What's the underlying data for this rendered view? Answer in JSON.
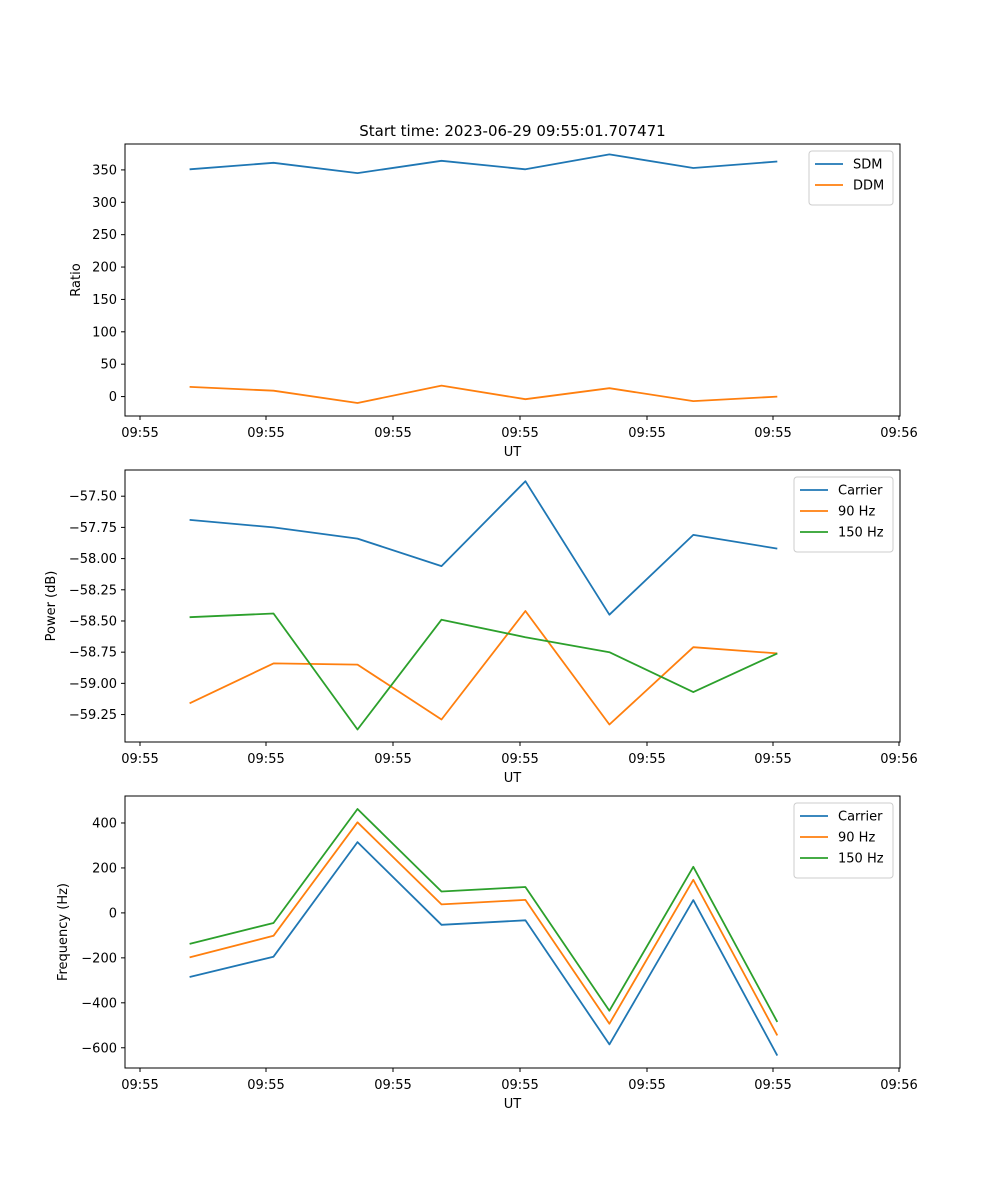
{
  "title": "Start time: 2023-06-29 09:55:01.707471",
  "chart_data": [
    {
      "type": "line",
      "title": "Start time: 2023-06-29 09:55:01.707471",
      "xlabel": "UT",
      "ylabel": "Ratio",
      "xlim": [
        0,
        6
      ],
      "ylim": [
        -30,
        390
      ],
      "x_ticks": [
        "09:55",
        "09:55",
        "09:55",
        "09:55",
        "09:55",
        "09:55",
        "09:56"
      ],
      "y_ticks": [
        0,
        50,
        100,
        150,
        200,
        250,
        300,
        350
      ],
      "x": [
        0.5,
        1.15,
        1.8,
        2.45,
        3.1,
        3.75,
        4.4,
        5.05
      ],
      "legend": "top-right",
      "grid": false,
      "series": [
        {
          "name": "SDM",
          "color": "#1f77b4",
          "values": [
            351,
            361,
            345,
            364,
            351,
            374,
            353,
            363
          ]
        },
        {
          "name": "DDM",
          "color": "#ff7f0e",
          "values": [
            15,
            9,
            -10,
            17,
            -4,
            13,
            -7,
            0
          ]
        }
      ]
    },
    {
      "type": "line",
      "title": "",
      "xlabel": "UT",
      "ylabel": "Power (dB)",
      "xlim": [
        0,
        6
      ],
      "ylim": [
        -59.47,
        -57.29
      ],
      "x_ticks": [
        "09:55",
        "09:55",
        "09:55",
        "09:55",
        "09:55",
        "09:55",
        "09:56"
      ],
      "y_ticks": [
        "−57.50",
        "−57.75",
        "−58.00",
        "−58.25",
        "−58.50",
        "−58.75",
        "−59.00",
        "−59.25"
      ],
      "y_tick_values": [
        -57.5,
        -57.75,
        -58.0,
        -58.25,
        -58.5,
        -58.75,
        -59.0,
        -59.25
      ],
      "x": [
        0.5,
        1.15,
        1.8,
        2.45,
        3.1,
        3.75,
        4.4,
        5.05
      ],
      "legend": "top-right",
      "grid": false,
      "series": [
        {
          "name": "Carrier",
          "color": "#1f77b4",
          "values": [
            -57.69,
            -57.75,
            -57.84,
            -58.06,
            -57.38,
            -58.45,
            -57.81,
            -57.92
          ]
        },
        {
          "name": "90 Hz",
          "color": "#ff7f0e",
          "values": [
            -59.16,
            -58.84,
            -58.85,
            -59.29,
            -58.42,
            -59.33,
            -58.71,
            -58.76
          ]
        },
        {
          "name": "150 Hz",
          "color": "#2ca02c",
          "values": [
            -58.47,
            -58.44,
            -59.37,
            -58.49,
            -58.63,
            -58.75,
            -59.07,
            -58.76
          ]
        }
      ]
    },
    {
      "type": "line",
      "title": "",
      "xlabel": "UT",
      "ylabel": "Frequency (Hz)",
      "xlim": [
        0,
        6
      ],
      "ylim": [
        -690,
        520
      ],
      "x_ticks": [
        "09:55",
        "09:55",
        "09:55",
        "09:55",
        "09:55",
        "09:55",
        "09:56"
      ],
      "y_ticks": [
        "400",
        "200",
        "0",
        "−200",
        "−400",
        "−600"
      ],
      "y_tick_values": [
        400,
        200,
        0,
        -200,
        -400,
        -600
      ],
      "x": [
        0.5,
        1.15,
        1.8,
        2.45,
        3.1,
        3.75,
        4.4,
        5.05
      ],
      "legend": "top-right",
      "grid": false,
      "series": [
        {
          "name": "Carrier",
          "color": "#1f77b4",
          "values": [
            -285,
            -195,
            315,
            -53,
            -33,
            -585,
            57,
            -635
          ]
        },
        {
          "name": "90 Hz",
          "color": "#ff7f0e",
          "values": [
            -198,
            -102,
            403,
            38,
            58,
            -493,
            147,
            -545
          ]
        },
        {
          "name": "150 Hz",
          "color": "#2ca02c",
          "values": [
            -138,
            -45,
            462,
            95,
            115,
            -435,
            205,
            -485
          ]
        }
      ]
    }
  ]
}
